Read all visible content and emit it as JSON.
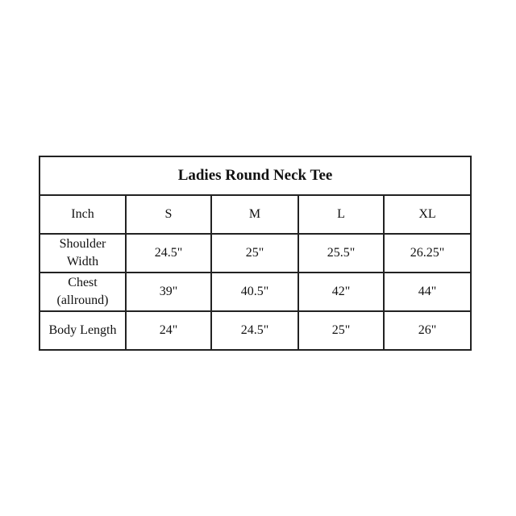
{
  "title": "Ladies Round Neck Tee",
  "header": [
    "Inch",
    "S",
    "M",
    "L",
    "XL"
  ],
  "rows": [
    {
      "label": [
        "Shoulder",
        "Width"
      ],
      "values": [
        "24.5\"",
        "25\"",
        "25.5\"",
        "26.25\""
      ]
    },
    {
      "label": [
        "Chest",
        "(allround)"
      ],
      "values": [
        "39\"",
        "40.5\"",
        "42\"",
        "44\""
      ]
    },
    {
      "label": [
        "Body Length"
      ],
      "values": [
        "24\"",
        "24.5\"",
        "25\"",
        "26\""
      ]
    }
  ]
}
